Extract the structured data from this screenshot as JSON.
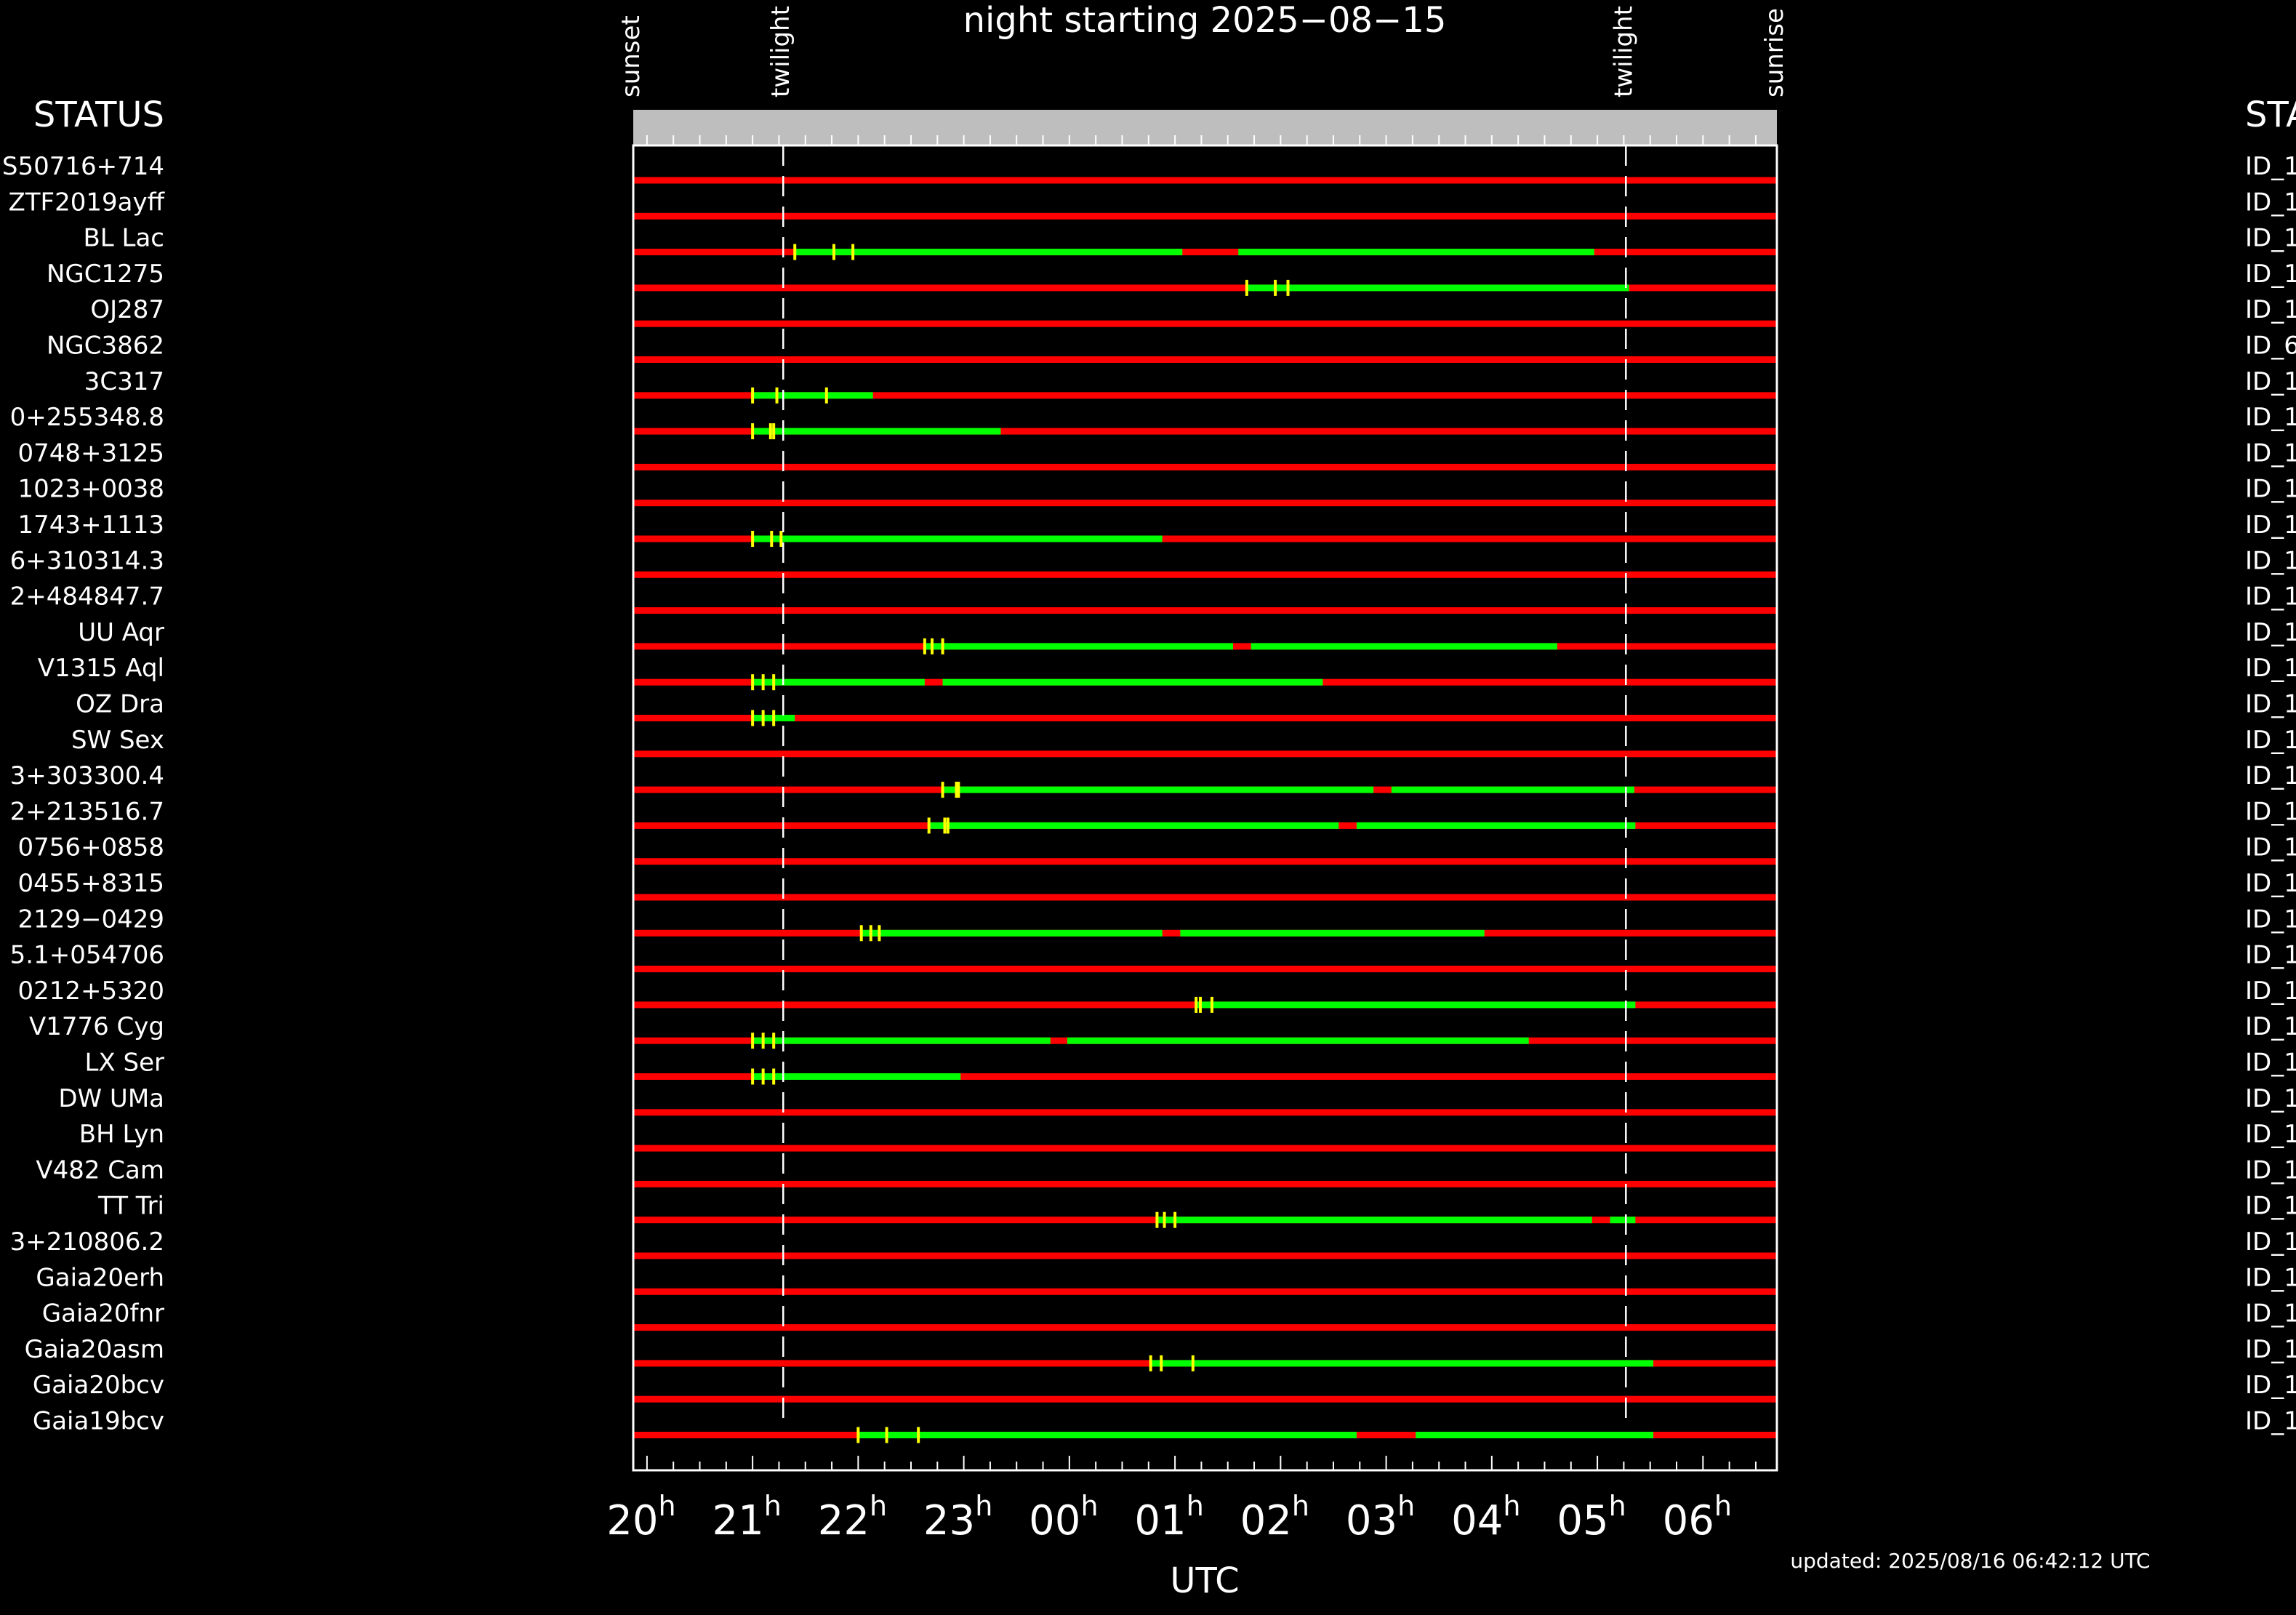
{
  "page": {
    "background": "#000000",
    "foreground": "#ffffff"
  },
  "chart_data": {
    "type": "timeline",
    "title": "night starting 2025−08−15",
    "xlabel": "UTC",
    "updated": "updated: 2025/08/16 06:42:12 UTC",
    "left_header": "STATUS",
    "right_header": "STA",
    "hour_suffix": "h",
    "x_ticks": [
      {
        "h": 20,
        "label": "20"
      },
      {
        "h": 21,
        "label": "21"
      },
      {
        "h": 22,
        "label": "22"
      },
      {
        "h": 23,
        "label": "23"
      },
      {
        "h": 24,
        "label": "00"
      },
      {
        "h": 25,
        "label": "01"
      },
      {
        "h": 26,
        "label": "02"
      },
      {
        "h": 27,
        "label": "03"
      },
      {
        "h": 28,
        "label": "04"
      },
      {
        "h": 29,
        "label": "05"
      },
      {
        "h": 30,
        "label": "06"
      }
    ],
    "xlim": [
      19.87,
      30.7
    ],
    "events": [
      {
        "label": "sunset",
        "h": 19.87,
        "line": false
      },
      {
        "label": "twilight",
        "h": 21.29,
        "line": true
      },
      {
        "label": "twilight",
        "h": 29.27,
        "line": true
      },
      {
        "label": "sunrise",
        "h": 30.7,
        "line": false
      }
    ],
    "colors": {
      "unobservable": "#ff0000",
      "observable": "#00ff00",
      "marker": "#ffff00",
      "header_band": "#bebebe",
      "frame": "#ffffff"
    },
    "rows": [
      {
        "name": "S50716+714",
        "right": "ID_1",
        "green": [],
        "marks": []
      },
      {
        "name": "ZTF2019ayff",
        "right": "ID_1",
        "green": [],
        "marks": []
      },
      {
        "name": "BL Lac",
        "right": "ID_1",
        "green": [
          [
            21.4,
            25.07
          ],
          [
            25.6,
            28.97
          ]
        ],
        "marks": [
          21.4,
          21.77,
          21.95
        ]
      },
      {
        "name": "NGC1275",
        "right": "ID_1",
        "green": [
          [
            25.68,
            29.3
          ]
        ],
        "marks": [
          25.68,
          25.95,
          26.07
        ]
      },
      {
        "name": "OJ287",
        "right": "ID_1",
        "green": [],
        "marks": []
      },
      {
        "name": "NGC3862",
        "right": "ID_6",
        "green": [],
        "marks": []
      },
      {
        "name": "3C317",
        "right": "ID_1",
        "green": [
          [
            21.0,
            22.14
          ]
        ],
        "marks": [
          21.0,
          21.23,
          21.7
        ]
      },
      {
        "name": "0+255348.8",
        "right": "ID_1",
        "green": [
          [
            21.0,
            23.35
          ]
        ],
        "marks": [
          21.0,
          21.17,
          21.2
        ]
      },
      {
        "name": "0748+3125",
        "right": "ID_1",
        "green": [],
        "marks": []
      },
      {
        "name": "1023+0038",
        "right": "ID_1",
        "green": [],
        "marks": []
      },
      {
        "name": "1743+1113",
        "right": "ID_1",
        "green": [
          [
            21.0,
            24.88
          ]
        ],
        "marks": [
          21.0,
          21.18,
          21.27
        ]
      },
      {
        "name": "6+310314.3",
        "right": "ID_1",
        "green": [],
        "marks": []
      },
      {
        "name": "2+484847.7",
        "right": "ID_1",
        "green": [],
        "marks": []
      },
      {
        "name": "UU Aqr",
        "right": "ID_1",
        "green": [
          [
            22.63,
            25.55
          ],
          [
            25.72,
            28.62
          ]
        ],
        "marks": [
          22.63,
          22.7,
          22.8
        ]
      },
      {
        "name": "V1315 Aql",
        "right": "ID_1",
        "green": [
          [
            21.0,
            22.63
          ],
          [
            22.8,
            26.4
          ]
        ],
        "marks": [
          21.0,
          21.1,
          21.2
        ]
      },
      {
        "name": "OZ Dra",
        "right": "ID_1",
        "green": [
          [
            21.0,
            21.4
          ]
        ],
        "marks": [
          21.0,
          21.1,
          21.2
        ]
      },
      {
        "name": "SW Sex",
        "right": "ID_1",
        "green": [],
        "marks": []
      },
      {
        "name": "3+303300.4",
        "right": "ID_1",
        "green": [
          [
            22.8,
            26.88
          ],
          [
            27.05,
            29.35
          ]
        ],
        "marks": [
          22.8,
          22.93,
          22.95
        ]
      },
      {
        "name": "2+213516.7",
        "right": "ID_1",
        "green": [
          [
            22.67,
            26.55
          ],
          [
            26.72,
            29.36
          ]
        ],
        "marks": [
          22.67,
          22.82,
          22.85
        ]
      },
      {
        "name": "0756+0858",
        "right": "ID_1",
        "green": [],
        "marks": []
      },
      {
        "name": "0455+8315",
        "right": "ID_1",
        "green": [],
        "marks": []
      },
      {
        "name": "2129−0429",
        "right": "ID_1",
        "green": [
          [
            22.03,
            24.88
          ],
          [
            25.05,
            27.93
          ]
        ],
        "marks": [
          22.03,
          22.12,
          22.2
        ]
      },
      {
        "name": "5.1+054706",
        "right": "ID_1",
        "green": [],
        "marks": []
      },
      {
        "name": "0212+5320",
        "right": "ID_1",
        "green": [
          [
            25.2,
            29.36
          ]
        ],
        "marks": [
          25.2,
          25.24,
          25.35
        ]
      },
      {
        "name": "V1776 Cyg",
        "right": "ID_1",
        "green": [
          [
            21.0,
            23.82
          ],
          [
            23.98,
            28.35
          ]
        ],
        "marks": [
          21.0,
          21.1,
          21.2
        ]
      },
      {
        "name": "LX Ser",
        "right": "ID_1",
        "green": [
          [
            21.0,
            22.97
          ]
        ],
        "marks": [
          21.0,
          21.1,
          21.2
        ]
      },
      {
        "name": "DW UMa",
        "right": "ID_1",
        "green": [],
        "marks": []
      },
      {
        "name": "BH Lyn",
        "right": "ID_1",
        "green": [],
        "marks": []
      },
      {
        "name": "V482 Cam",
        "right": "ID_1",
        "green": [],
        "marks": []
      },
      {
        "name": "TT Tri",
        "right": "ID_1",
        "green": [
          [
            24.83,
            28.95
          ],
          [
            29.12,
            29.36
          ]
        ],
        "marks": [
          24.83,
          24.9,
          25.0
        ]
      },
      {
        "name": "3+210806.2",
        "right": "ID_1",
        "green": [],
        "marks": []
      },
      {
        "name": "Gaia20erh",
        "right": "ID_1",
        "green": [],
        "marks": []
      },
      {
        "name": "Gaia20fnr",
        "right": "ID_1",
        "green": [],
        "marks": []
      },
      {
        "name": "Gaia20asm",
        "right": "ID_1",
        "green": [
          [
            24.77,
            29.53
          ]
        ],
        "marks": [
          24.77,
          24.87,
          25.17
        ]
      },
      {
        "name": "Gaia20bcv",
        "right": "ID_1",
        "green": [],
        "marks": []
      },
      {
        "name": "Gaia19bcv",
        "right": "ID_1",
        "green": [
          [
            22.0,
            26.72
          ],
          [
            27.28,
            29.53
          ]
        ],
        "marks": [
          22.0,
          22.27,
          22.57
        ]
      }
    ]
  }
}
